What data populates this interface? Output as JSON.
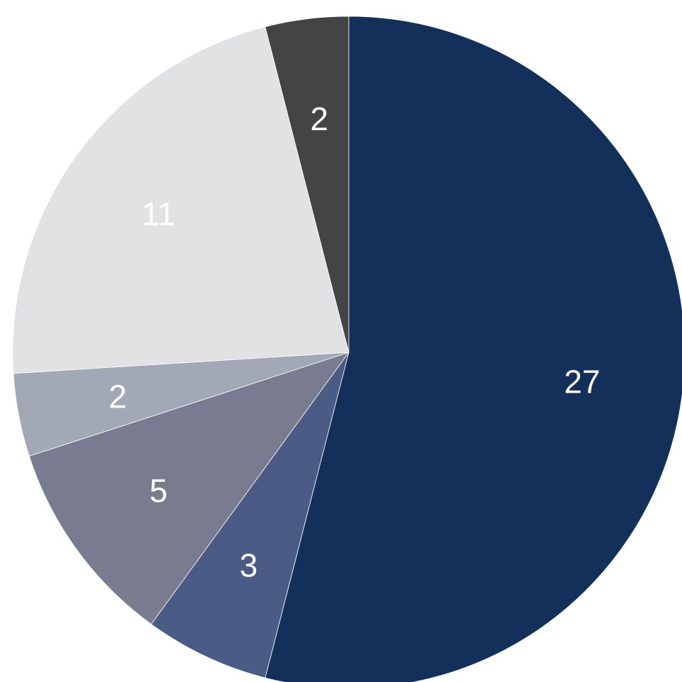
{
  "chart_data": {
    "type": "pie",
    "slices": [
      {
        "value": 27,
        "label": "27",
        "color": "#13305b"
      },
      {
        "value": 3,
        "label": "3",
        "color": "#4a5b86"
      },
      {
        "value": 5,
        "label": "5",
        "color": "#797b90"
      },
      {
        "value": 2,
        "label": "2",
        "color": "#a2a8b6"
      },
      {
        "value": 11,
        "label": "11",
        "color": "#e1e2e4"
      },
      {
        "value": 2,
        "label": "2",
        "color": "#444444"
      }
    ],
    "start_angle_deg": 0,
    "direction": "clockwise",
    "legend": "none"
  }
}
